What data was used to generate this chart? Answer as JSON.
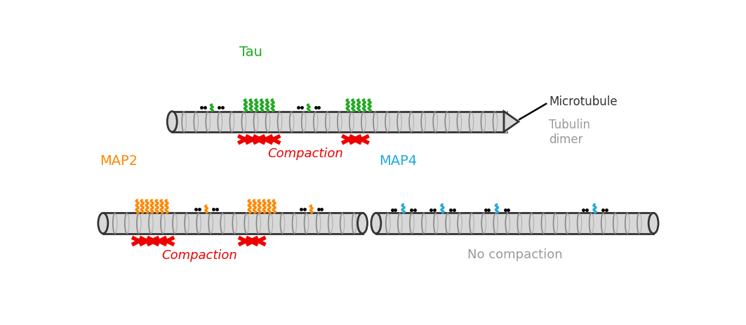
{
  "background_color": "#ffffff",
  "tau_label": "Tau",
  "tau_color": "#22aa22",
  "map2_label": "MAP2",
  "map2_color": "#ff8800",
  "map4_label": "MAP4",
  "map4_color": "#22aadd",
  "microtubule_label": "Microtubule",
  "tubulin_label": "Tubulin\ndimer",
  "compaction_label": "Compaction",
  "compaction_color": "#ee0000",
  "no_compaction_label": "No compaction",
  "no_compaction_color": "#999999",
  "mt_body_color": "#d8d8d8",
  "mt_edge_color": "#333333",
  "mt_ring_color": "#888888"
}
